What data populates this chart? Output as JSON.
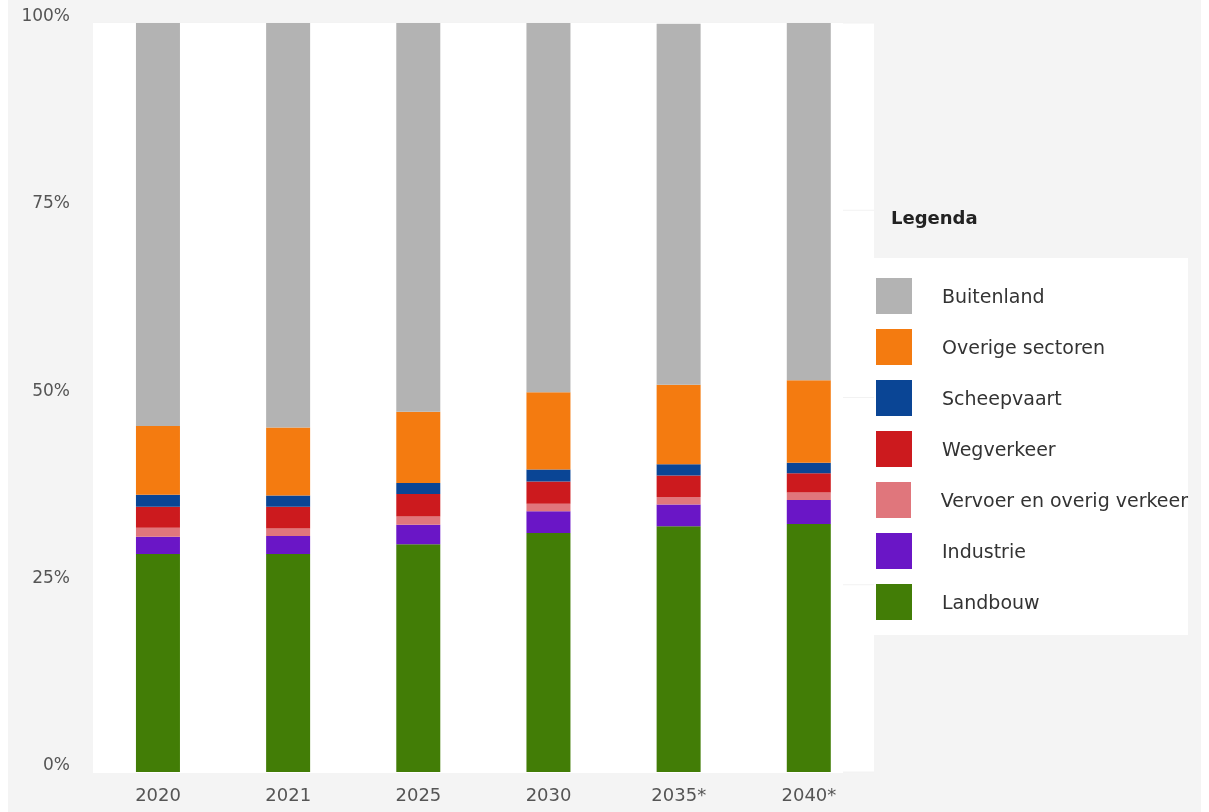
{
  "chart_data": {
    "type": "bar",
    "stacked": true,
    "legend_title": "Legenda",
    "legend": "right",
    "grid": "y",
    "categories": [
      "2020",
      "2021",
      "2025",
      "2030",
      "2035*",
      "2040*"
    ],
    "ylim": [
      0,
      100
    ],
    "yticks": [
      {
        "value": 0,
        "label": "0%"
      },
      {
        "value": 25,
        "label": "25%"
      },
      {
        "value": 50,
        "label": "50%"
      },
      {
        "value": 75,
        "label": "75%"
      },
      {
        "value": 100,
        "label": "100%"
      }
    ],
    "series": [
      {
        "name": "Landbouw",
        "color": "#427d06",
        "values": [
          29.1,
          29.1,
          30.4,
          31.9,
          32.8,
          33.1
        ]
      },
      {
        "name": "Industrie",
        "color": "#6a16c6",
        "values": [
          2.3,
          2.4,
          2.6,
          2.9,
          2.9,
          3.2
        ]
      },
      {
        "name": "Vervoer en overig verkeer",
        "color": "#e0767c",
        "values": [
          1.2,
          1.0,
          1.1,
          1.0,
          1.0,
          1.0
        ]
      },
      {
        "name": "Wegverkeer",
        "color": "#cc1a1e",
        "values": [
          2.8,
          2.9,
          3.0,
          3.0,
          2.9,
          2.6
        ]
      },
      {
        "name": "Scheepvaart",
        "color": "#0a4595",
        "values": [
          1.6,
          1.5,
          1.5,
          1.6,
          1.5,
          1.4
        ]
      },
      {
        "name": "Overige sectoren",
        "color": "#f47b10",
        "values": [
          9.2,
          9.1,
          9.5,
          10.3,
          10.6,
          11.0
        ]
      },
      {
        "name": "Buitenland",
        "color": "#b3b3b3",
        "values": [
          53.9,
          54.0,
          51.9,
          49.3,
          48.2,
          47.7
        ]
      }
    ]
  }
}
